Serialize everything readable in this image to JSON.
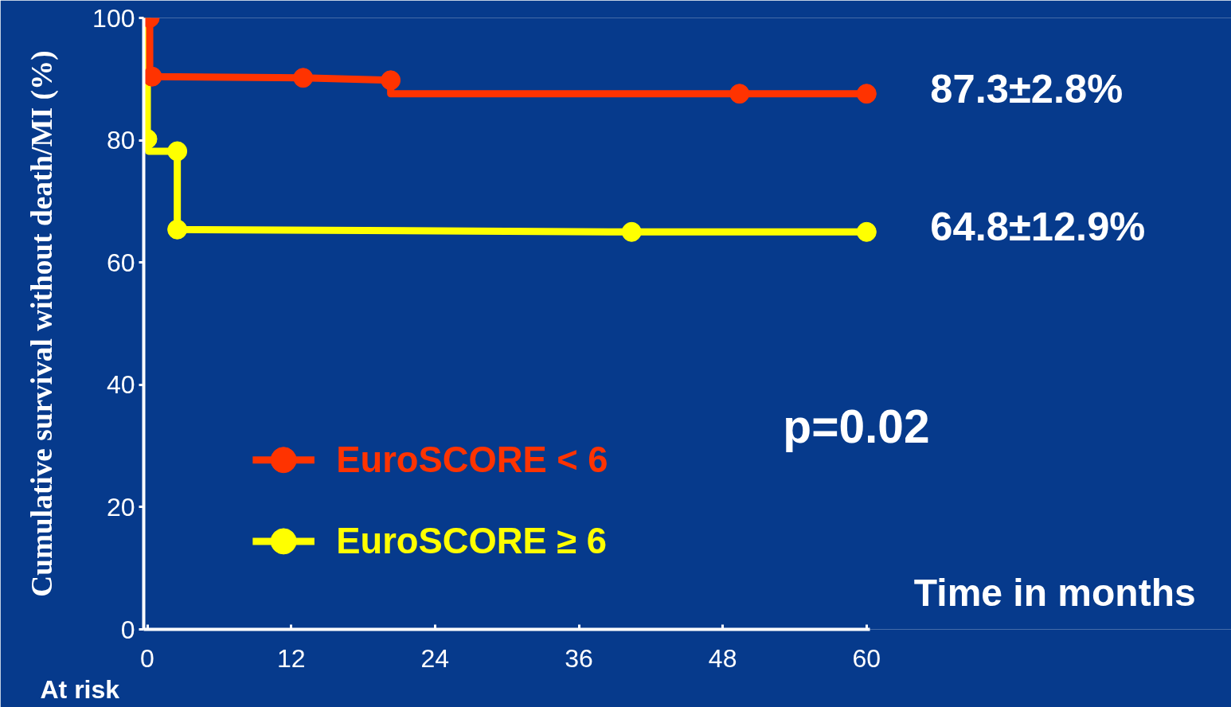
{
  "chart_data": {
    "type": "line",
    "xlabel": "Time in months",
    "ylabel": "Cumulative survival without death/MI (%)",
    "xlim": [
      -0.3,
      60.3
    ],
    "ylim": [
      0,
      100
    ],
    "xticks": [
      0,
      12,
      24,
      36,
      48,
      60
    ],
    "yticks": [
      0,
      20,
      40,
      60,
      80,
      100
    ],
    "series": [
      {
        "name": "EuroSCORE < 6",
        "color": "#ff3300",
        "x": [
          0.2,
          0.2,
          0.4,
          13,
          20.3,
          20.3,
          49.4,
          60
        ],
        "values": [
          100,
          90.4,
          90.4,
          90.2,
          89.8,
          87.6,
          87.6,
          87.6
        ],
        "marker": "none"
      },
      {
        "name": "EuroSCORE  ≥ 6",
        "color": "#ffff00",
        "x": [
          0,
          0,
          0.1,
          2.5,
          2.5,
          40.4,
          60
        ],
        "values": [
          100,
          80.2,
          78.2,
          78.2,
          65.4,
          65,
          65
        ],
        "marker": "none"
      },
      {
        "type": "scatter",
        "color": "#ff3300",
        "x": [
          0.2,
          0.4,
          13,
          20.3,
          49.4,
          60
        ],
        "values": [
          100,
          90.4,
          90.2,
          89.8,
          87.6,
          87.6
        ],
        "marker": "circle"
      },
      {
        "type": "scatter",
        "color": "#ffff00",
        "x": [
          0,
          2.5,
          2.5,
          40.4,
          60
        ],
        "values": [
          80.2,
          78.2,
          65.4,
          65,
          65
        ],
        "marker": "circle"
      }
    ],
    "annotations": [
      {
        "text": "87.3±2.8%",
        "x": 60,
        "y": 87.3
      },
      {
        "text": "64.8±12.9%",
        "x": 60,
        "y": 64.8
      },
      "p=0.02",
      "At risk"
    ],
    "legend": "bottom left",
    "grid": false
  }
}
